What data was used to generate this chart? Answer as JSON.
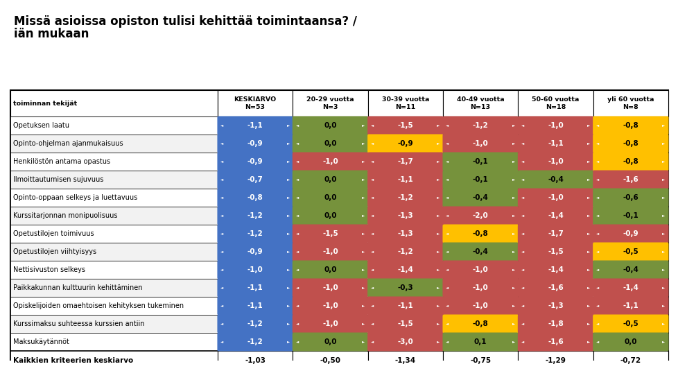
{
  "title_line1": "Missä asioissa opiston tulisi kehittää toimintaansa? /",
  "title_line2": "iän mukaan",
  "col_headers": [
    "toiminnan tekijät",
    "KESKIARVO\nN=53",
    "20-29 vuotta\nN=3",
    "30-39 vuotta\nN=11",
    "40-49 vuotta\nN=13",
    "50-60 vuotta\nN=18",
    "yli 60 vuotta\nN=8"
  ],
  "rows": [
    {
      "label": "Opetuksen laatu",
      "values": [
        -1.1,
        0.0,
        -1.5,
        -1.2,
        -1.0,
        -0.8
      ]
    },
    {
      "label": "Opinto-ohjelman ajanmukaisuus",
      "values": [
        -0.9,
        0.0,
        -0.9,
        -1.0,
        -1.1,
        -0.8
      ]
    },
    {
      "label": "Henkilöstön antama opastus",
      "values": [
        -0.9,
        -1.0,
        -1.7,
        -0.1,
        -1.0,
        -0.8
      ]
    },
    {
      "label": "Ilmoittautumisen sujuvuus",
      "values": [
        -0.7,
        0.0,
        -1.1,
        -0.1,
        -0.4,
        -1.6
      ]
    },
    {
      "label": "Opinto-oppaan selkeys ja luettavuus",
      "values": [
        -0.8,
        0.0,
        -1.2,
        -0.4,
        -1.0,
        -0.6
      ]
    },
    {
      "label": "Kurssitarjonnan monipuolisuus",
      "values": [
        -1.2,
        0.0,
        -1.3,
        -2.0,
        -1.4,
        -0.1
      ]
    },
    {
      "label": "Opetustilojen toimivuus",
      "values": [
        -1.2,
        -1.5,
        -1.3,
        -0.8,
        -1.7,
        -0.9
      ]
    },
    {
      "label": "Opetustilojen viihtyisyys",
      "values": [
        -0.9,
        -1.0,
        -1.2,
        -0.4,
        -1.5,
        -0.5
      ]
    },
    {
      "label": "Nettisivuston selkeys",
      "values": [
        -1.0,
        0.0,
        -1.4,
        -1.0,
        -1.4,
        -0.4
      ]
    },
    {
      "label": "Paikkakunnan kulttuurin kehittäminen",
      "values": [
        -1.1,
        -1.0,
        -0.3,
        -1.0,
        -1.6,
        -1.4
      ]
    },
    {
      "label": "Opiskelijoiden omaehtoisen kehityksen tukeminen",
      "values": [
        -1.1,
        -1.0,
        -1.1,
        -1.0,
        -1.3,
        -1.1
      ]
    },
    {
      "label": "Kurssimaksu suhteessa kurssien antiin",
      "values": [
        -1.2,
        -1.0,
        -1.5,
        -0.8,
        -1.8,
        -0.5
      ]
    },
    {
      "label": "Maksukäytännöt",
      "values": [
        -1.2,
        0.0,
        -3.0,
        0.1,
        -1.6,
        0.0
      ]
    }
  ],
  "footer_label": "Kaikkien kriteerien keskiarvo",
  "footer_values": [
    "-1,03",
    "-0,50",
    "-1,34",
    "-0,75",
    "-1,29",
    "-0,72"
  ],
  "color_blue": "#4472C4",
  "color_green": "#76923C",
  "color_red": "#C0504D",
  "color_yellow": "#FFC000",
  "color_darkred": "#963634",
  "cell_colors": [
    [
      "blue",
      "green",
      "red",
      "red",
      "red",
      "yellow"
    ],
    [
      "blue",
      "green",
      "yellow",
      "red",
      "red",
      "yellow"
    ],
    [
      "blue",
      "red",
      "red",
      "green",
      "red",
      "yellow"
    ],
    [
      "blue",
      "green",
      "red",
      "green",
      "green",
      "red"
    ],
    [
      "blue",
      "green",
      "red",
      "green",
      "red",
      "green"
    ],
    [
      "blue",
      "green",
      "red",
      "red",
      "red",
      "green"
    ],
    [
      "blue",
      "red",
      "red",
      "yellow",
      "red",
      "red"
    ],
    [
      "blue",
      "red",
      "red",
      "green",
      "red",
      "yellow"
    ],
    [
      "blue",
      "green",
      "red",
      "red",
      "red",
      "green"
    ],
    [
      "blue",
      "red",
      "green",
      "red",
      "red",
      "red"
    ],
    [
      "blue",
      "red",
      "red",
      "red",
      "red",
      "red"
    ],
    [
      "blue",
      "red",
      "red",
      "yellow",
      "red",
      "yellow"
    ],
    [
      "blue",
      "green",
      "red",
      "green",
      "red",
      "green"
    ]
  ]
}
